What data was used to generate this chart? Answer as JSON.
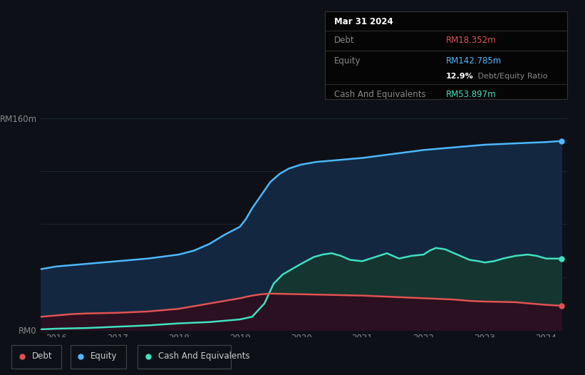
{
  "bg_color": "#0d1117",
  "plot_bg_color": "#0d1117",
  "title_box": {
    "date": "Mar 31 2024",
    "debt_label": "Debt",
    "debt_value": "RM18.352m",
    "debt_color": "#e05252",
    "equity_label": "Equity",
    "equity_value": "RM142.785m",
    "equity_color": "#4db8ff",
    "ratio_value": "12.9%",
    "ratio_label": " Debt/Equity Ratio",
    "cash_label": "Cash And Equivalents",
    "cash_value": "RM53.897m",
    "cash_color": "#40e0c0"
  },
  "ylabel_160": "RM160m",
  "ylabel_0": "RM0",
  "x_ticks": [
    2016,
    2017,
    2018,
    2019,
    2020,
    2021,
    2022,
    2023,
    2024
  ],
  "legend": [
    {
      "label": "Debt",
      "color": "#e05252"
    },
    {
      "label": "Equity",
      "color": "#4db8ff"
    },
    {
      "label": "Cash And Equivalents",
      "color": "#40e0c0"
    }
  ],
  "equity": {
    "x": [
      2015.75,
      2016.0,
      2016.25,
      2016.5,
      2017.0,
      2017.5,
      2018.0,
      2018.25,
      2018.5,
      2018.75,
      2019.0,
      2019.1,
      2019.2,
      2019.35,
      2019.5,
      2019.65,
      2019.8,
      2020.0,
      2020.25,
      2020.5,
      2021.0,
      2021.5,
      2022.0,
      2022.5,
      2023.0,
      2023.5,
      2024.0,
      2024.25
    ],
    "y": [
      46,
      48,
      49,
      50,
      52,
      54,
      57,
      60,
      65,
      72,
      78,
      84,
      92,
      102,
      112,
      118,
      122,
      125,
      127,
      128,
      130,
      133,
      136,
      138,
      140,
      141,
      142,
      142.785
    ],
    "color": "#4db8ff",
    "fill_color": "#132840"
  },
  "cash": {
    "x": [
      2015.75,
      2016.0,
      2016.5,
      2017.0,
      2017.5,
      2018.0,
      2018.5,
      2019.0,
      2019.2,
      2019.4,
      2019.55,
      2019.7,
      2019.85,
      2020.0,
      2020.2,
      2020.35,
      2020.5,
      2020.65,
      2020.8,
      2021.0,
      2021.2,
      2021.4,
      2021.6,
      2021.8,
      2022.0,
      2022.1,
      2022.2,
      2022.35,
      2022.5,
      2022.6,
      2022.75,
      2022.9,
      2023.0,
      2023.15,
      2023.3,
      2023.5,
      2023.7,
      2023.85,
      2024.0,
      2024.25
    ],
    "y": [
      0.5,
      1,
      1.5,
      2.5,
      3.5,
      5,
      6,
      8,
      10,
      20,
      35,
      42,
      46,
      50,
      55,
      57,
      58,
      56,
      53,
      52,
      55,
      58,
      54,
      56,
      57,
      60,
      62,
      61,
      58,
      56,
      53,
      52,
      51,
      52,
      54,
      56,
      57,
      56,
      54,
      53.897
    ],
    "color": "#40e0c0",
    "fill_color": "#153530"
  },
  "debt": {
    "x": [
      2015.75,
      2016.0,
      2016.25,
      2016.5,
      2017.0,
      2017.5,
      2018.0,
      2018.25,
      2018.5,
      2018.75,
      2019.0,
      2019.2,
      2019.35,
      2019.5,
      2020.0,
      2020.5,
      2021.0,
      2021.5,
      2022.0,
      2022.25,
      2022.5,
      2022.75,
      2023.0,
      2023.5,
      2024.0,
      2024.25
    ],
    "y": [
      10,
      11,
      12,
      12.5,
      13,
      14,
      16,
      18,
      20,
      22,
      24,
      26,
      27,
      27.5,
      27,
      26.5,
      26,
      25,
      24,
      23.5,
      23,
      22,
      21.5,
      21,
      19,
      18.352
    ],
    "color": "#e05252",
    "fill_color": "#2a1020"
  },
  "ylim": [
    0,
    170
  ],
  "xlim": [
    2015.75,
    2024.35
  ],
  "grid_color": "#1e2d3d",
  "grid_y": [
    0,
    40,
    80,
    120,
    160
  ]
}
